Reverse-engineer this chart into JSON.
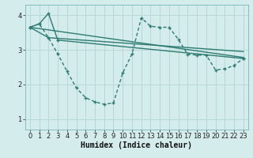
{
  "background_color": "#d4eceb",
  "grid_color": "#b8d8d5",
  "line_color": "#2d7b72",
  "xlabel": "Humidex (Indice chaleur)",
  "xlabel_fontsize": 7,
  "tick_fontsize": 6,
  "xlim": [
    -0.5,
    23.5
  ],
  "ylim": [
    0.7,
    4.3
  ],
  "yticks": [
    1,
    2,
    3,
    4
  ],
  "xticks": [
    0,
    1,
    2,
    3,
    4,
    5,
    6,
    7,
    8,
    9,
    10,
    11,
    12,
    13,
    14,
    15,
    16,
    17,
    18,
    19,
    20,
    21,
    22,
    23
  ],
  "series1_x": [
    0,
    1,
    2,
    3,
    4,
    5,
    6,
    7,
    8,
    9,
    10,
    11,
    12,
    13,
    14,
    15,
    16,
    17,
    18,
    19,
    20,
    21,
    22,
    23
  ],
  "series1_y": [
    3.65,
    3.75,
    3.35,
    2.88,
    2.38,
    1.9,
    1.62,
    1.5,
    1.43,
    1.47,
    2.33,
    2.88,
    3.92,
    3.68,
    3.65,
    3.65,
    3.3,
    2.87,
    2.85,
    2.85,
    2.42,
    2.45,
    2.55,
    2.75
  ],
  "series2_x": [
    0,
    1,
    2,
    3,
    23
  ],
  "series2_y": [
    3.65,
    3.75,
    4.05,
    3.28,
    2.75
  ],
  "series3_x": [
    0,
    2,
    23
  ],
  "series3_y": [
    3.65,
    3.35,
    2.95
  ],
  "series4_x": [
    0,
    23
  ],
  "series4_y": [
    3.65,
    2.78
  ]
}
